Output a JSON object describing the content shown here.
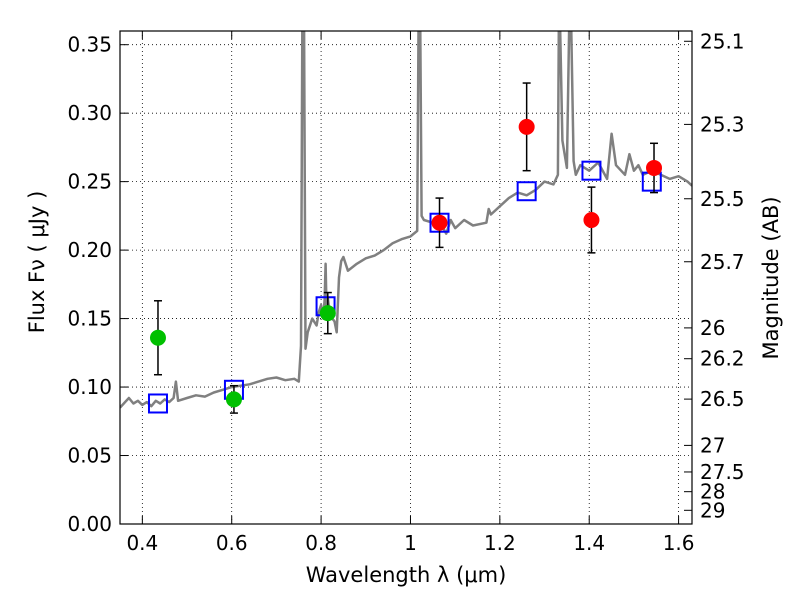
{
  "chart_data": {
    "type": "scatter",
    "xlabel": "Wavelength  λ (μm)",
    "ylabel": "Flux  Fν  ( μJy )",
    "ylabel_right": "Magnitude (AB)",
    "xlim": [
      0.35,
      1.63
    ],
    "ylim": [
      0.0,
      0.36
    ],
    "grid": true,
    "x_ticks": [
      0.4,
      0.6,
      0.8,
      1.0,
      1.2,
      1.4,
      1.6
    ],
    "x_tick_labels": [
      "0.4",
      "0.6",
      "0.8",
      "1",
      "1.2",
      "1.4",
      "1.6"
    ],
    "y_ticks": [
      0.0,
      0.05,
      0.1,
      0.15,
      0.2,
      0.25,
      0.3,
      0.35
    ],
    "y_tick_labels": [
      "0.00",
      "0.05",
      "0.10",
      "0.15",
      "0.20",
      "0.25",
      "0.30",
      "0.35"
    ],
    "mag_ticks": [
      {
        "flux": 0.3525,
        "label": "25.1"
      },
      {
        "flux": 0.2918,
        "label": "25.3"
      },
      {
        "flux": 0.2375,
        "label": "25.5"
      },
      {
        "flux": 0.1915,
        "label": "25.7"
      },
      {
        "flux": 0.1432,
        "label": "26"
      },
      {
        "flux": 0.1207,
        "label": "26.2"
      },
      {
        "flux": 0.0912,
        "label": "26.5"
      },
      {
        "flux": 0.0574,
        "label": "27"
      },
      {
        "flux": 0.038,
        "label": "27.5"
      },
      {
        "flux": 0.0236,
        "label": "28"
      },
      {
        "flux": 0.01,
        "label": "29"
      }
    ],
    "series": [
      {
        "kind": "line",
        "color": "#808080",
        "x": [
          0.35,
          0.37,
          0.38,
          0.39,
          0.4,
          0.41,
          0.42,
          0.43,
          0.44,
          0.45,
          0.46,
          0.47,
          0.475,
          0.48,
          0.5,
          0.52,
          0.54,
          0.56,
          0.58,
          0.6,
          0.62,
          0.64,
          0.66,
          0.68,
          0.7,
          0.72,
          0.74,
          0.75,
          0.755,
          0.758,
          0.762,
          0.765,
          0.77,
          0.78,
          0.79,
          0.795,
          0.8,
          0.805,
          0.808,
          0.81,
          0.812,
          0.815,
          0.82,
          0.83,
          0.835,
          0.84,
          0.845,
          0.85,
          0.86,
          0.88,
          0.9,
          0.92,
          0.94,
          0.96,
          0.98,
          1.0,
          1.015,
          1.018,
          1.02,
          1.022,
          1.025,
          1.03,
          1.05,
          1.07,
          1.08,
          1.09,
          1.1,
          1.12,
          1.14,
          1.17,
          1.175,
          1.18,
          1.2,
          1.22,
          1.24,
          1.26,
          1.28,
          1.3,
          1.32,
          1.33,
          1.332,
          1.335,
          1.34,
          1.35,
          1.355,
          1.36,
          1.365,
          1.37,
          1.38,
          1.4,
          1.42,
          1.44,
          1.45,
          1.46,
          1.48,
          1.49,
          1.5,
          1.51,
          1.52,
          1.54,
          1.56,
          1.58,
          1.6,
          1.62,
          1.63
        ],
        "y": [
          0.085,
          0.092,
          0.088,
          0.09,
          0.087,
          0.089,
          0.086,
          0.09,
          0.088,
          0.091,
          0.089,
          0.092,
          0.104,
          0.09,
          0.092,
          0.094,
          0.093,
          0.096,
          0.098,
          0.1,
          0.101,
          0.102,
          0.104,
          0.106,
          0.107,
          0.105,
          0.106,
          0.104,
          0.13,
          0.36,
          0.36,
          0.128,
          0.14,
          0.15,
          0.145,
          0.155,
          0.16,
          0.15,
          0.165,
          0.19,
          0.158,
          0.165,
          0.152,
          0.148,
          0.14,
          0.18,
          0.192,
          0.195,
          0.185,
          0.19,
          0.194,
          0.196,
          0.2,
          0.205,
          0.208,
          0.21,
          0.214,
          0.36,
          0.36,
          0.36,
          0.225,
          0.222,
          0.22,
          0.218,
          0.212,
          0.222,
          0.216,
          0.222,
          0.218,
          0.22,
          0.23,
          0.226,
          0.232,
          0.238,
          0.242,
          0.24,
          0.244,
          0.25,
          0.248,
          0.255,
          0.36,
          0.36,
          0.28,
          0.26,
          0.36,
          0.36,
          0.265,
          0.255,
          0.262,
          0.258,
          0.264,
          0.252,
          0.285,
          0.262,
          0.255,
          0.27,
          0.258,
          0.262,
          0.255,
          0.258,
          0.255,
          0.252,
          0.254,
          0.25,
          0.247
        ]
      },
      {
        "name": "",
        "kind": "square",
        "color": "#0000ff",
        "x": [
          0.435,
          0.605,
          0.81,
          1.065,
          1.26,
          1.405,
          1.54
        ],
        "y": [
          0.088,
          0.098,
          0.159,
          0.22,
          0.243,
          0.258,
          0.25
        ]
      },
      {
        "kind": "point",
        "color": "#00c000",
        "x": [
          0.435,
          0.605,
          0.815
        ],
        "y": [
          0.136,
          0.091,
          0.154
        ],
        "yerr": [
          0.027,
          0.01,
          0.015
        ]
      },
      {
        "kind": "point",
        "color": "#ff0000",
        "x": [
          1.065,
          1.26,
          1.405,
          1.545
        ],
        "y": [
          0.22,
          0.29,
          0.222,
          0.26
        ],
        "yerr": [
          0.018,
          0.032,
          0.024,
          0.018
        ]
      }
    ]
  }
}
